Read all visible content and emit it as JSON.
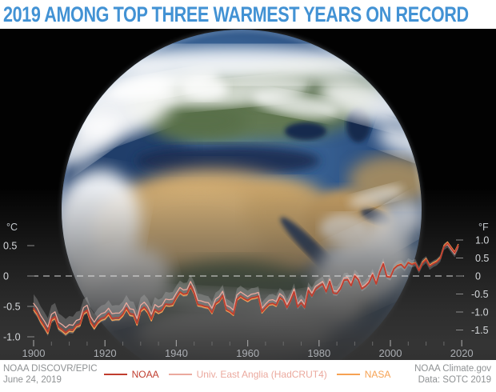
{
  "header": {
    "title": "2019 AMONG TOP THREE WARMEST YEARS ON RECORD",
    "title_color": "#4292d4"
  },
  "footer": {
    "credit_line1": "NOAA DISCOVR/EPIC",
    "credit_line2": "June 24, 2019",
    "source_line1": "NOAA Climate.gov",
    "source_line2": "Data: SOTC 2019"
  },
  "legend": [
    {
      "label": "NOAA",
      "color": "#c03d2e"
    },
    {
      "label": "Univ. East Anglia (HadCRUT4)",
      "color": "#eba99e"
    },
    {
      "label": "NASA",
      "color": "#f6a253"
    }
  ],
  "chart_data": {
    "type": "line",
    "title": "Global surface temperature anomaly 1900-2019",
    "x_range": [
      1900,
      2019
    ],
    "x_step": 1,
    "axes": {
      "left": {
        "label": "°C",
        "ticks": [
          0.5,
          0,
          -0.5,
          -1.0
        ]
      },
      "right": {
        "label": "°F",
        "ticks": [
          1.0,
          0.5,
          0,
          -0.5,
          -1.0,
          -1.5
        ]
      },
      "x": {
        "major_ticks": [
          1900,
          1920,
          1940,
          1960,
          1980,
          2000,
          2020
        ],
        "minor_step": 5
      }
    },
    "zero_line": {
      "value": 0,
      "style": "dashed",
      "color": "rgba(235,235,235,0.9)"
    },
    "uncertainty_band": {
      "center_series": "Univ. East Anglia (HadCRUT4)",
      "halfwidth_start_c": 0.15,
      "halfwidth_end_c": 0.05,
      "color": "rgba(190,190,190,0.30)"
    },
    "series": [
      {
        "name": "NOAA",
        "color": "#c03d2e",
        "width": 1.8,
        "values": [
          -0.53,
          -0.61,
          -0.73,
          -0.82,
          -0.92,
          -0.71,
          -0.67,
          -0.84,
          -0.88,
          -0.93,
          -0.88,
          -0.89,
          -0.81,
          -0.79,
          -0.6,
          -0.56,
          -0.75,
          -0.84,
          -0.75,
          -0.7,
          -0.68,
          -0.61,
          -0.7,
          -0.69,
          -0.69,
          -0.63,
          -0.52,
          -0.62,
          -0.63,
          -0.78,
          -0.56,
          -0.51,
          -0.58,
          -0.71,
          -0.55,
          -0.59,
          -0.56,
          -0.46,
          -0.47,
          -0.46,
          -0.35,
          -0.26,
          -0.3,
          -0.29,
          -0.16,
          -0.28,
          -0.47,
          -0.48,
          -0.5,
          -0.51,
          -0.6,
          -0.45,
          -0.41,
          -0.32,
          -0.55,
          -0.58,
          -0.63,
          -0.38,
          -0.33,
          -0.37,
          -0.4,
          -0.36,
          -0.35,
          -0.33,
          -0.59,
          -0.52,
          -0.46,
          -0.45,
          -0.48,
          -0.35,
          -0.39,
          -0.52,
          -0.41,
          -0.26,
          -0.51,
          -0.44,
          -0.52,
          -0.24,
          -0.33,
          -0.22,
          -0.17,
          -0.13,
          -0.26,
          -0.09,
          -0.28,
          -0.29,
          -0.21,
          -0.07,
          -0.06,
          -0.16,
          0.0,
          -0.06,
          -0.21,
          -0.17,
          -0.11,
          0.02,
          -0.13,
          0.06,
          0.2,
          -0.01,
          -0.02,
          0.12,
          0.17,
          0.19,
          0.13,
          0.22,
          0.19,
          0.21,
          0.09,
          0.21,
          0.27,
          0.16,
          0.2,
          0.23,
          0.29,
          0.48,
          0.54,
          0.46,
          0.38,
          0.5
        ]
      },
      {
        "name": "Univ. East Anglia (HadCRUT4)",
        "color": "#eba99e",
        "width": 1.3,
        "values": [
          -0.45,
          -0.53,
          -0.65,
          -0.74,
          -0.84,
          -0.63,
          -0.59,
          -0.76,
          -0.8,
          -0.85,
          -0.8,
          -0.81,
          -0.73,
          -0.71,
          -0.52,
          -0.48,
          -0.67,
          -0.76,
          -0.67,
          -0.62,
          -0.6,
          -0.53,
          -0.62,
          -0.61,
          -0.61,
          -0.55,
          -0.44,
          -0.54,
          -0.55,
          -0.7,
          -0.48,
          -0.43,
          -0.5,
          -0.63,
          -0.47,
          -0.51,
          -0.48,
          -0.38,
          -0.39,
          -0.38,
          -0.28,
          -0.19,
          -0.23,
          -0.22,
          -0.09,
          -0.21,
          -0.4,
          -0.41,
          -0.43,
          -0.44,
          -0.53,
          -0.38,
          -0.34,
          -0.25,
          -0.48,
          -0.51,
          -0.56,
          -0.31,
          -0.26,
          -0.3,
          -0.34,
          -0.3,
          -0.29,
          -0.27,
          -0.53,
          -0.46,
          -0.4,
          -0.39,
          -0.42,
          -0.29,
          -0.34,
          -0.47,
          -0.36,
          -0.21,
          -0.46,
          -0.39,
          -0.47,
          -0.19,
          -0.28,
          -0.17,
          -0.13,
          -0.09,
          -0.22,
          -0.05,
          -0.24,
          -0.25,
          -0.17,
          -0.03,
          -0.02,
          -0.12,
          0.03,
          -0.03,
          -0.18,
          -0.14,
          -0.08,
          0.05,
          -0.1,
          0.09,
          0.23,
          0.02,
          -0.01,
          0.13,
          0.18,
          0.2,
          0.14,
          0.23,
          0.2,
          0.22,
          0.1,
          0.22,
          0.27,
          0.16,
          0.2,
          0.23,
          0.29,
          0.48,
          0.52,
          0.44,
          0.36,
          0.48
        ]
      },
      {
        "name": "NASA",
        "color": "#f6a253",
        "width": 1.3,
        "values": [
          -0.56,
          -0.64,
          -0.76,
          -0.85,
          -0.95,
          -0.74,
          -0.7,
          -0.87,
          -0.91,
          -0.96,
          -0.91,
          -0.92,
          -0.84,
          -0.82,
          -0.63,
          -0.59,
          -0.78,
          -0.87,
          -0.78,
          -0.73,
          -0.71,
          -0.64,
          -0.73,
          -0.72,
          -0.72,
          -0.66,
          -0.55,
          -0.65,
          -0.66,
          -0.81,
          -0.59,
          -0.54,
          -0.61,
          -0.74,
          -0.58,
          -0.62,
          -0.59,
          -0.49,
          -0.5,
          -0.49,
          -0.37,
          -0.28,
          -0.32,
          -0.31,
          -0.18,
          -0.3,
          -0.49,
          -0.5,
          -0.52,
          -0.53,
          -0.62,
          -0.47,
          -0.43,
          -0.34,
          -0.57,
          -0.6,
          -0.65,
          -0.4,
          -0.35,
          -0.39,
          -0.42,
          -0.38,
          -0.37,
          -0.35,
          -0.61,
          -0.54,
          -0.48,
          -0.47,
          -0.5,
          -0.37,
          -0.39,
          -0.52,
          -0.41,
          -0.26,
          -0.51,
          -0.44,
          -0.52,
          -0.24,
          -0.33,
          -0.22,
          -0.17,
          -0.13,
          -0.26,
          -0.09,
          -0.28,
          -0.29,
          -0.21,
          -0.07,
          -0.06,
          -0.16,
          0.0,
          -0.06,
          -0.21,
          -0.17,
          -0.11,
          0.02,
          -0.13,
          0.06,
          0.2,
          -0.01,
          -0.01,
          0.13,
          0.18,
          0.2,
          0.14,
          0.23,
          0.2,
          0.22,
          0.1,
          0.23,
          0.29,
          0.18,
          0.22,
          0.25,
          0.31,
          0.5,
          0.56,
          0.48,
          0.4,
          0.52
        ]
      }
    ]
  }
}
